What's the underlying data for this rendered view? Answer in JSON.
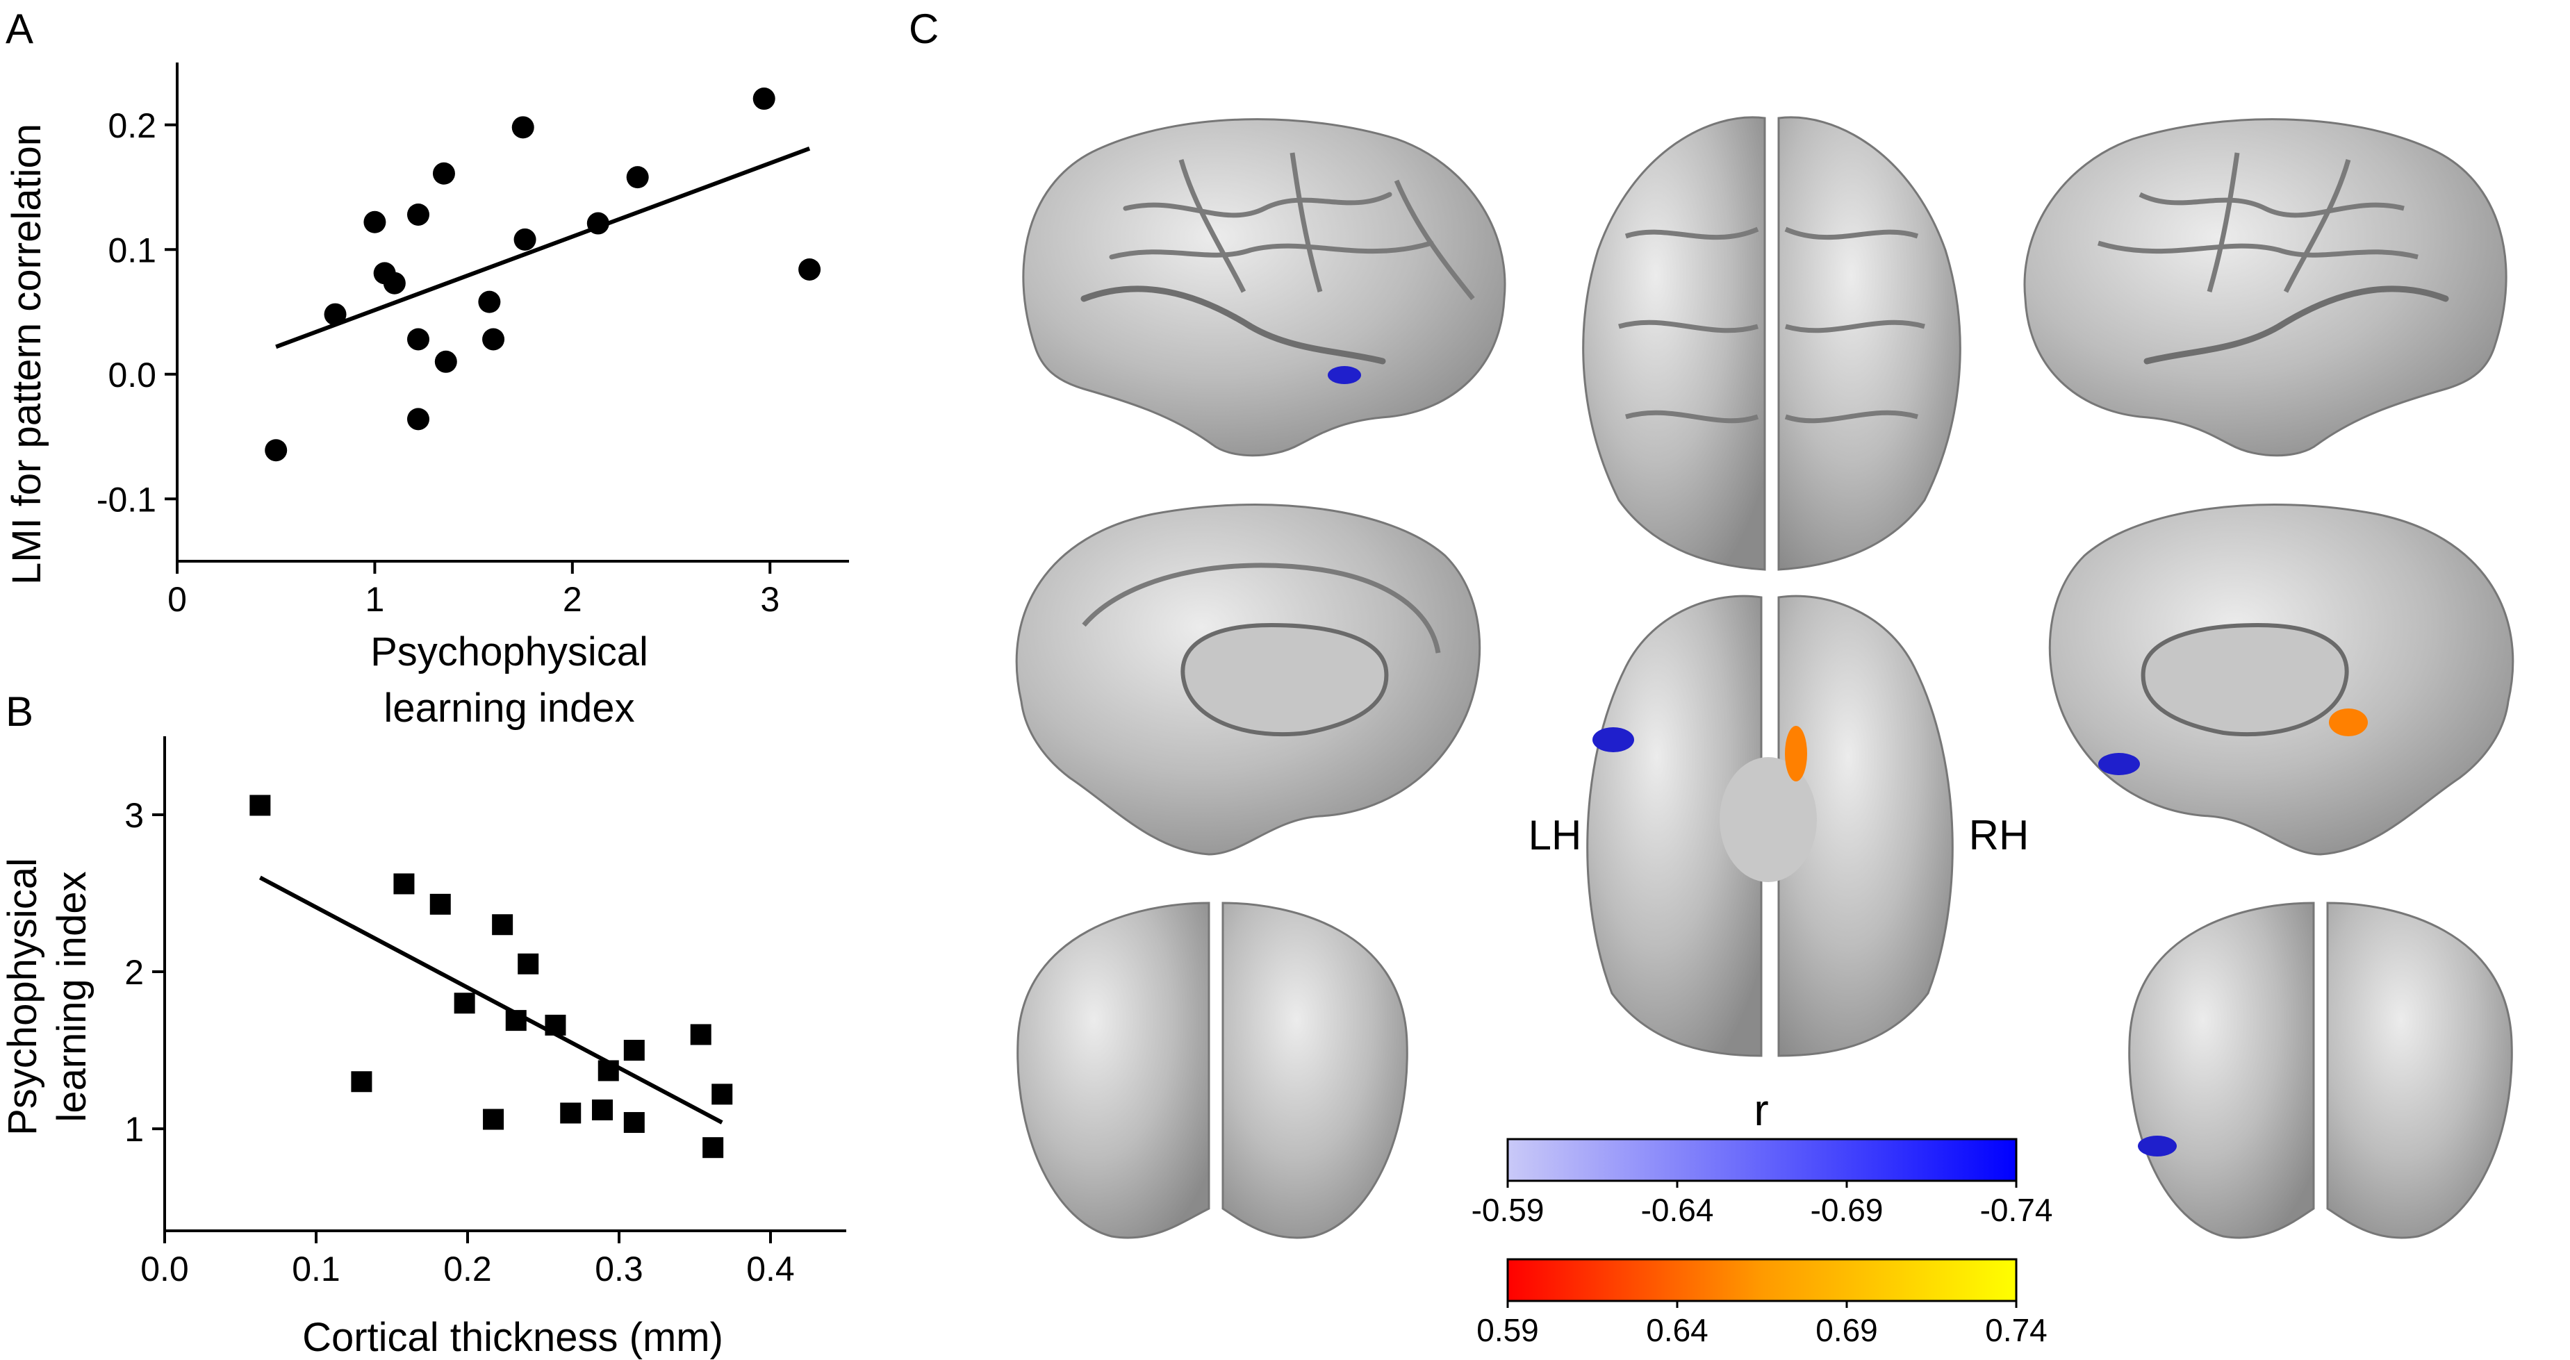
{
  "panels": {
    "a": "A",
    "b": "B",
    "c": "C"
  },
  "chart_data": [
    {
      "type": "scatter",
      "panel": "A",
      "xlabel": "Psychophysical learning index",
      "xlabel_lines": [
        "Psychophysical",
        "learning index"
      ],
      "ylabel": "LMI for pattern correlation",
      "xlim": [
        0,
        3.4
      ],
      "ylim": [
        -0.15,
        0.25
      ],
      "xticks": [
        0,
        1,
        2,
        3
      ],
      "xtick_labels": [
        "0",
        "1",
        "2",
        "3"
      ],
      "yticks": [
        -0.1,
        0.0,
        0.1,
        0.2
      ],
      "ytick_labels": [
        "-0.1",
        "0.0",
        "0.1",
        "0.2"
      ],
      "grid": false,
      "marker": "circle",
      "points": [
        {
          "x": 0.5,
          "y": -0.061
        },
        {
          "x": 0.8,
          "y": 0.048
        },
        {
          "x": 1.0,
          "y": 0.122
        },
        {
          "x": 1.05,
          "y": 0.081
        },
        {
          "x": 1.1,
          "y": 0.073
        },
        {
          "x": 1.22,
          "y": 0.128
        },
        {
          "x": 1.22,
          "y": 0.028
        },
        {
          "x": 1.22,
          "y": -0.036
        },
        {
          "x": 1.35,
          "y": 0.161
        },
        {
          "x": 1.36,
          "y": 0.01
        },
        {
          "x": 1.58,
          "y": 0.058
        },
        {
          "x": 1.6,
          "y": 0.028
        },
        {
          "x": 1.75,
          "y": 0.198
        },
        {
          "x": 1.76,
          "y": 0.108
        },
        {
          "x": 2.13,
          "y": 0.121
        },
        {
          "x": 2.33,
          "y": 0.158
        },
        {
          "x": 2.97,
          "y": 0.221
        },
        {
          "x": 3.2,
          "y": 0.084
        }
      ],
      "fit_line": [
        {
          "x": 0.5,
          "y": 0.022
        },
        {
          "x": 3.2,
          "y": 0.181
        }
      ]
    },
    {
      "type": "scatter",
      "panel": "B",
      "xlabel": "Cortical thickness (mm)",
      "ylabel": "Psychophysical learning index",
      "ylabel_lines": [
        "Psychophysical",
        "learning index"
      ],
      "xlim": [
        0,
        0.45
      ],
      "ylim": [
        0.35,
        3.5
      ],
      "xticks": [
        0,
        0.1,
        0.2,
        0.3,
        0.4
      ],
      "xtick_labels": [
        "0.0",
        "0.1",
        "0.2",
        "0.3",
        "0.4"
      ],
      "yticks": [
        1,
        2,
        3
      ],
      "ytick_labels": [
        "1",
        "2",
        "3"
      ],
      "grid": false,
      "marker": "square",
      "points": [
        {
          "x": 0.063,
          "y": 3.06
        },
        {
          "x": 0.13,
          "y": 1.3
        },
        {
          "x": 0.158,
          "y": 2.56
        },
        {
          "x": 0.182,
          "y": 2.43
        },
        {
          "x": 0.198,
          "y": 1.8
        },
        {
          "x": 0.217,
          "y": 1.06
        },
        {
          "x": 0.223,
          "y": 2.3
        },
        {
          "x": 0.232,
          "y": 1.69
        },
        {
          "x": 0.24,
          "y": 2.05
        },
        {
          "x": 0.258,
          "y": 1.66
        },
        {
          "x": 0.268,
          "y": 1.1
        },
        {
          "x": 0.289,
          "y": 1.12
        },
        {
          "x": 0.293,
          "y": 1.37
        },
        {
          "x": 0.31,
          "y": 1.04
        },
        {
          "x": 0.31,
          "y": 1.5
        },
        {
          "x": 0.354,
          "y": 1.6
        },
        {
          "x": 0.362,
          "y": 0.88
        },
        {
          "x": 0.368,
          "y": 1.22
        }
      ],
      "fit_line": [
        {
          "x": 0.063,
          "y": 2.6
        },
        {
          "x": 0.368,
          "y": 1.04
        }
      ]
    }
  ],
  "brain_panel": {
    "hemisphere_left": "LH",
    "hemisphere_right": "RH",
    "colorbar_title": "r",
    "negative_scale": {
      "colors": [
        "#c9c9f8",
        "#0000ff"
      ],
      "tick_labels": [
        "-0.59",
        "-0.64",
        "-0.69",
        "-0.74"
      ]
    },
    "positive_scale": {
      "colors": [
        "#ff0000",
        "#ffff00"
      ],
      "tick_labels": [
        "0.59",
        "0.64",
        "0.69",
        "0.74"
      ]
    },
    "views": [
      "left-lateral",
      "top",
      "right-lateral",
      "left-medial",
      "bottom",
      "right-medial",
      "posterior-left",
      "posterior-right"
    ],
    "colors": {
      "cortex": "#b9b9b9",
      "cortex_highlight": "#e8e8e8",
      "sulcus": "#707070",
      "negative_cluster": "#1f1fcc",
      "positive_cluster": "#ff8000"
    }
  }
}
